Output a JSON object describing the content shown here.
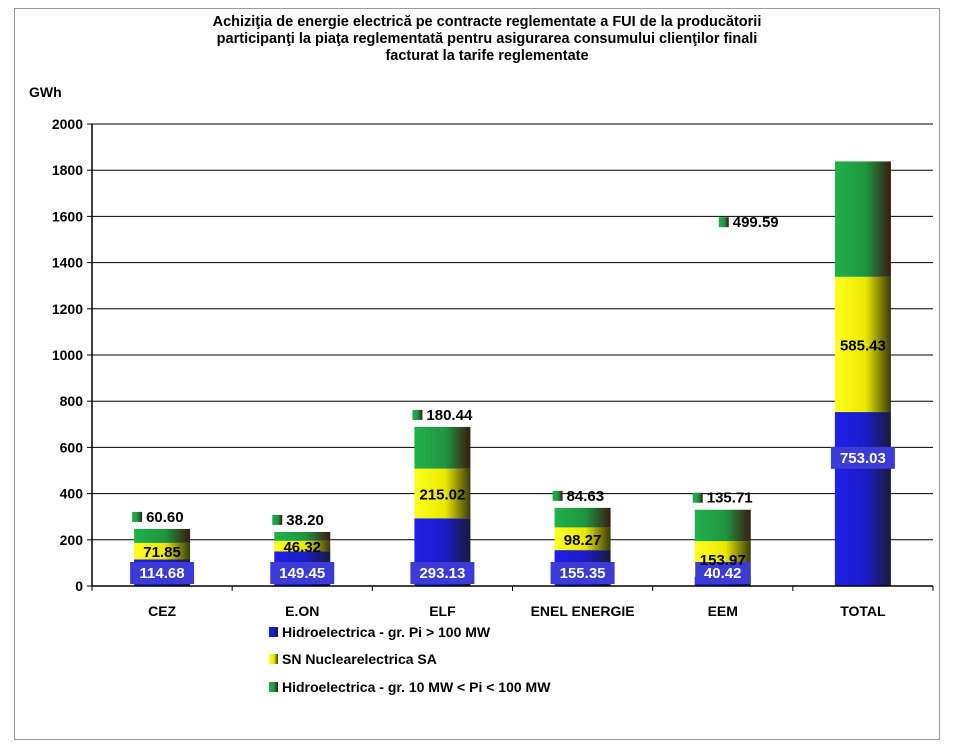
{
  "chart_data": {
    "type": "bar",
    "stacked": true,
    "title_lines": [
      "Achiziţia de energie electrică pe contracte reglementate a FUI de la  producătorii",
      "participanţi la piaţa reglementată pentru asigurarea consumului clienţilor  finali",
      "facturat la tarife reglementate"
    ],
    "ylabel": "GWh",
    "ylim": [
      0,
      2000
    ],
    "yticks": [
      "0",
      "200",
      "400",
      "600",
      "800",
      "1000",
      "1200",
      "1400",
      "1600",
      "1800",
      "2000"
    ],
    "grid": true,
    "legend_position": "bottom",
    "categories": [
      "CEZ",
      "E.ON",
      "ELF",
      "ENEL ENERGIE",
      "EEM",
      "TOTAL"
    ],
    "series": [
      {
        "name": "Hidroelectrica - gr. Pi > 100 MW",
        "color": "#1f1fe0",
        "values": [
          114.68,
          149.45,
          293.13,
          155.35,
          40.42,
          753.03
        ],
        "labels": [
          "114.68",
          "149.45",
          "293.13",
          "155.35",
          "40.42",
          "753.03"
        ]
      },
      {
        "name": "SN Nuclearelectrica SA",
        "color": "#ffff00",
        "values": [
          71.85,
          46.32,
          215.02,
          98.27,
          153.97,
          585.43
        ],
        "labels": [
          "71.85",
          "46.32",
          "215.02",
          "98.27",
          "153.97",
          "585.43"
        ]
      },
      {
        "name": "Hidroelectrica - gr. 10 MW < Pi < 100 MW",
        "color": "#22a845",
        "values": [
          60.6,
          38.2,
          180.44,
          84.63,
          135.71,
          499.59
        ],
        "labels": [
          "60.60",
          "38.20",
          "180.44",
          "84.63",
          "135.71",
          "499.59"
        ]
      }
    ]
  }
}
